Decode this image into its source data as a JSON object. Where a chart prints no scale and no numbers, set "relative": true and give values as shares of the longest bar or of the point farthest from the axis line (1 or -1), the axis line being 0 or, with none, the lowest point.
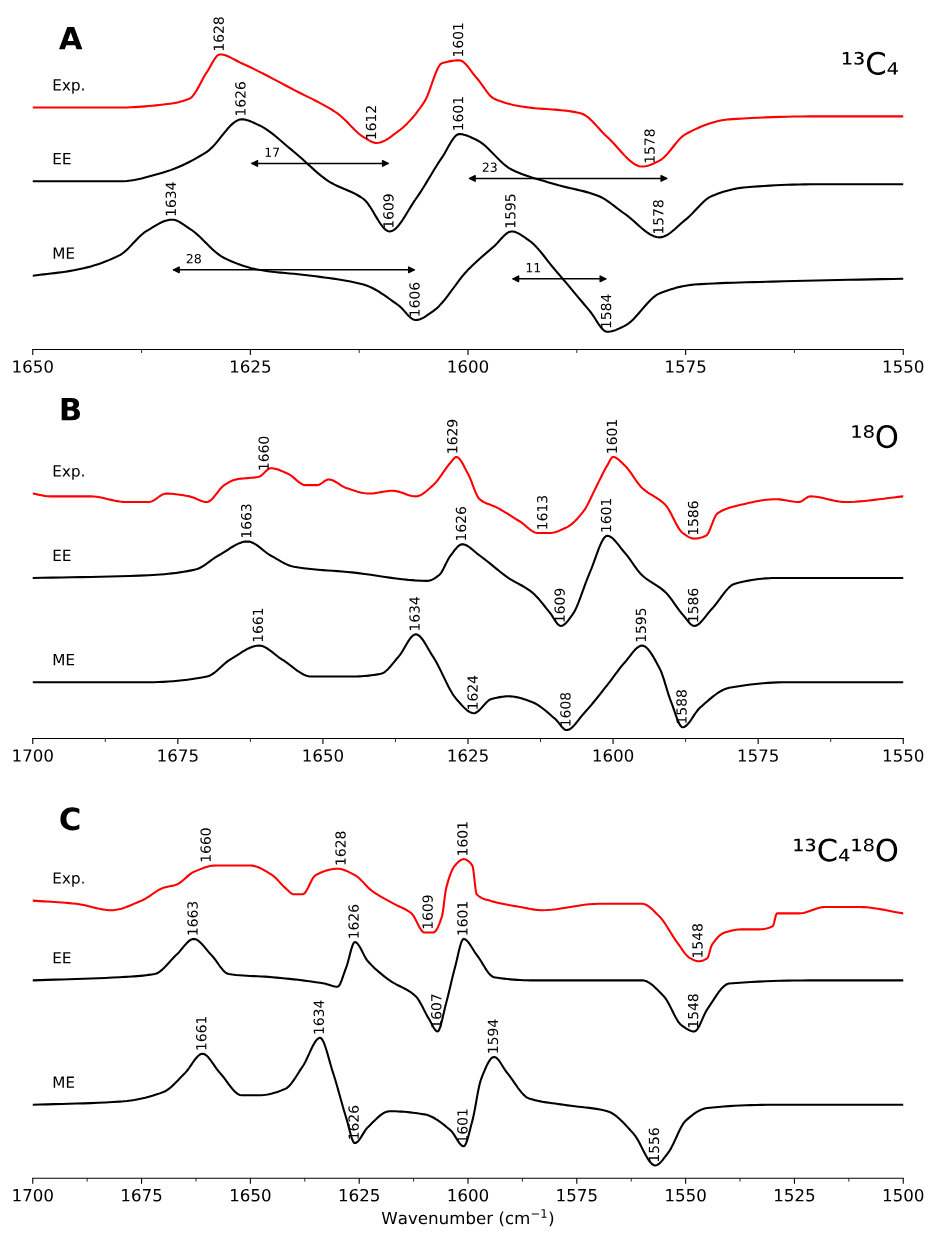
{
  "chart_data": [
    {
      "type": "line",
      "title": "A",
      "relative": true,
      "tick_labels": "x",
      "grid": false,
      "xlim": [
        1650,
        1550
      ],
      "xticks": [
        1650,
        1625,
        1600,
        1575,
        1550
      ],
      "series": [
        {
          "name": "Exp.",
          "color": "#ff0000",
          "x": [
            1650,
            1640,
            1635,
            1632,
            1630,
            1628.5,
            1626,
            1620,
            1615,
            1612,
            1610.5,
            1608,
            1605,
            1603,
            1601,
            1599,
            1597,
            1593,
            1589,
            1587,
            1584,
            1580,
            1578,
            1575,
            1570,
            1560,
            1550
          ],
          "values": [
            0.82,
            0.82,
            0.83,
            0.85,
            0.94,
            1.0,
            0.97,
            0.88,
            0.8,
            0.72,
            0.7,
            0.74,
            0.84,
            0.97,
            0.98,
            0.92,
            0.85,
            0.82,
            0.81,
            0.8,
            0.72,
            0.62,
            0.64,
            0.73,
            0.78,
            0.79,
            0.79
          ]
        },
        {
          "name": "EE",
          "color": "#000000",
          "x": [
            1650,
            1640,
            1635,
            1630,
            1626,
            1624,
            1620,
            1616,
            1612,
            1609,
            1606,
            1603,
            1601,
            1599,
            1595,
            1590,
            1585,
            1582,
            1578,
            1575,
            1572,
            1568,
            1560,
            1550
          ],
          "values": [
            0.57,
            0.57,
            0.6,
            0.67,
            0.78,
            0.76,
            0.67,
            0.57,
            0.51,
            0.4,
            0.51,
            0.65,
            0.73,
            0.71,
            0.61,
            0.56,
            0.52,
            0.46,
            0.38,
            0.44,
            0.52,
            0.55,
            0.56,
            0.56
          ]
        },
        {
          "name": "ME",
          "color": "#000000",
          "x": [
            1650,
            1645,
            1640,
            1637,
            1634,
            1632,
            1628,
            1624,
            1618,
            1612,
            1608,
            1606,
            1604,
            1600,
            1597,
            1595,
            1593,
            1590,
            1586,
            1584,
            1582,
            1578,
            1574,
            1565,
            1550
          ],
          "values": [
            0.25,
            0.27,
            0.32,
            0.4,
            0.44,
            0.41,
            0.31,
            0.27,
            0.25,
            0.22,
            0.15,
            0.1,
            0.13,
            0.27,
            0.35,
            0.4,
            0.37,
            0.27,
            0.13,
            0.06,
            0.08,
            0.19,
            0.22,
            0.23,
            0.24
          ]
        }
      ],
      "annotations": [
        "¹³C₄",
        {
          "text": "1628",
          "x": 1628.5,
          "y": 1.0
        },
        {
          "text": "1612",
          "x": 1611,
          "y": 0.7
        },
        {
          "text": "1601",
          "x": 1601,
          "y": 0.98
        },
        {
          "text": "1578",
          "x": 1579,
          "y": 0.62
        },
        {
          "text": "1626",
          "x": 1626,
          "y": 0.78
        },
        {
          "text": "1609",
          "x": 1609,
          "y": 0.4
        },
        {
          "text": "1601",
          "x": 1601,
          "y": 0.73
        },
        {
          "text": "1578",
          "x": 1578,
          "y": 0.38
        },
        {
          "text": "1634",
          "x": 1634,
          "y": 0.44
        },
        {
          "text": "1606",
          "x": 1606,
          "y": 0.1
        },
        {
          "text": "1595",
          "x": 1595,
          "y": 0.4
        },
        {
          "text": "1584",
          "x": 1584,
          "y": 0.06
        },
        "17",
        "23",
        "28",
        "11"
      ]
    },
    {
      "type": "line",
      "title": "B",
      "relative": true,
      "tick_labels": "x",
      "grid": false,
      "xlim": [
        1700,
        1550
      ],
      "xticks": [
        1700,
        1675,
        1650,
        1625,
        1600,
        1575,
        1550
      ],
      "series": [
        {
          "name": "Exp.",
          "color": "#ff0000",
          "x": [
            1700,
            1697,
            1690,
            1684,
            1680,
            1677,
            1673,
            1670,
            1667,
            1665,
            1661,
            1659,
            1656,
            1653,
            1651,
            1649,
            1646,
            1642,
            1638,
            1634,
            1631,
            1628,
            1627,
            1625,
            1623,
            1620,
            1616,
            1613,
            1611,
            1608,
            1605,
            1603,
            1601,
            1600,
            1598,
            1595,
            1591,
            1588,
            1586,
            1584,
            1582,
            1578,
            1572,
            1568,
            1566,
            1560,
            1550
          ],
          "values": [
            0.87,
            0.86,
            0.86,
            0.84,
            0.84,
            0.87,
            0.86,
            0.84,
            0.9,
            0.92,
            0.93,
            0.96,
            0.94,
            0.9,
            0.9,
            0.92,
            0.89,
            0.87,
            0.88,
            0.86,
            0.9,
            0.98,
            1.0,
            0.94,
            0.85,
            0.82,
            0.77,
            0.73,
            0.73,
            0.75,
            0.81,
            0.89,
            0.97,
            1.0,
            0.97,
            0.89,
            0.83,
            0.73,
            0.71,
            0.72,
            0.8,
            0.83,
            0.85,
            0.84,
            0.86,
            0.84,
            0.86
          ]
        },
        {
          "name": "EE",
          "color": "#000000",
          "x": [
            1700,
            1680,
            1672,
            1668,
            1663,
            1659,
            1655,
            1645,
            1632,
            1630,
            1628,
            1626,
            1623,
            1618,
            1614,
            1611,
            1609,
            1607,
            1604,
            1601,
            1598,
            1595,
            1591,
            1588,
            1586,
            1583,
            1579,
            1572,
            1550
          ],
          "values": [
            0.57,
            0.58,
            0.6,
            0.65,
            0.7,
            0.65,
            0.61,
            0.59,
            0.56,
            0.58,
            0.65,
            0.69,
            0.65,
            0.57,
            0.52,
            0.45,
            0.4,
            0.44,
            0.59,
            0.72,
            0.66,
            0.58,
            0.52,
            0.44,
            0.4,
            0.46,
            0.55,
            0.57,
            0.57
          ]
        },
        {
          "name": "ME",
          "color": "#000000",
          "x": [
            1700,
            1680,
            1670,
            1666,
            1661,
            1657,
            1652,
            1645,
            1640,
            1637,
            1634,
            1631,
            1627,
            1624,
            1621,
            1618,
            1614,
            1610,
            1608,
            1605,
            1601,
            1598,
            1595,
            1592,
            1590,
            1588,
            1585,
            1580,
            1570,
            1550
          ],
          "values": [
            0.2,
            0.2,
            0.22,
            0.28,
            0.33,
            0.28,
            0.22,
            0.22,
            0.23,
            0.29,
            0.37,
            0.29,
            0.14,
            0.09,
            0.14,
            0.15,
            0.13,
            0.07,
            0.03,
            0.09,
            0.19,
            0.27,
            0.33,
            0.25,
            0.13,
            0.04,
            0.11,
            0.18,
            0.2,
            0.2
          ]
        }
      ],
      "annotations": [
        "¹⁸O",
        {
          "text": "1660",
          "x": 1660,
          "y": 0.94
        },
        {
          "text": "1629",
          "x": 1627.5,
          "y": 1.0
        },
        {
          "text": "1613",
          "x": 1612,
          "y": 0.73
        },
        {
          "text": "1601",
          "x": 1600,
          "y": 1.0
        },
        {
          "text": "1586",
          "x": 1586,
          "y": 0.71
        },
        {
          "text": "1663",
          "x": 1663,
          "y": 0.7
        },
        {
          "text": "1626",
          "x": 1626,
          "y": 0.69
        },
        {
          "text": "1609",
          "x": 1609,
          "y": 0.4
        },
        {
          "text": "1601",
          "x": 1601,
          "y": 0.72
        },
        {
          "text": "1586",
          "x": 1586,
          "y": 0.4
        },
        {
          "text": "1661",
          "x": 1661,
          "y": 0.33
        },
        {
          "text": "1634",
          "x": 1634,
          "y": 0.37
        },
        {
          "text": "1624",
          "x": 1624,
          "y": 0.09
        },
        {
          "text": "1608",
          "x": 1608,
          "y": 0.03
        },
        {
          "text": "1595",
          "x": 1595,
          "y": 0.33
        },
        {
          "text": "1588",
          "x": 1588,
          "y": 0.04
        }
      ]
    },
    {
      "type": "line",
      "title": "C",
      "relative": true,
      "tick_labels": "x",
      "grid": false,
      "xlabel": "Wavenumber (cm$^{−1}$)",
      "xlim": [
        1700,
        1500
      ],
      "xticks": [
        1700,
        1675,
        1650,
        1625,
        1600,
        1575,
        1550,
        1525,
        1500
      ],
      "series": [
        {
          "name": "Exp.",
          "color": "#ff0000",
          "x": [
            1700,
            1690,
            1682,
            1675,
            1670,
            1667,
            1663,
            1658,
            1650,
            1645,
            1642,
            1640,
            1638,
            1635,
            1630,
            1626,
            1622,
            1617,
            1613,
            1610,
            1608,
            1606,
            1605,
            1603,
            1601,
            1599,
            1598,
            1595,
            1588,
            1583,
            1570,
            1560,
            1556,
            1552,
            1549,
            1547,
            1545,
            1544,
            1541,
            1537,
            1533,
            1530,
            1529,
            1524,
            1518,
            1510,
            1500
          ],
          "values": [
            0.87,
            0.86,
            0.84,
            0.87,
            0.91,
            0.92,
            0.96,
            0.98,
            0.98,
            0.95,
            0.91,
            0.89,
            0.89,
            0.95,
            0.97,
            0.95,
            0.9,
            0.86,
            0.83,
            0.77,
            0.77,
            0.82,
            0.91,
            0.98,
            1.0,
            0.98,
            0.89,
            0.87,
            0.85,
            0.84,
            0.86,
            0.86,
            0.82,
            0.74,
            0.69,
            0.68,
            0.69,
            0.73,
            0.77,
            0.78,
            0.78,
            0.79,
            0.83,
            0.83,
            0.85,
            0.85,
            0.83
          ]
        },
        {
          "name": "EE",
          "color": "#000000",
          "x": [
            1700,
            1680,
            1672,
            1667,
            1663,
            1659,
            1655,
            1645,
            1633,
            1630,
            1628,
            1626,
            1623,
            1618,
            1612,
            1609,
            1607,
            1605,
            1603,
            1601,
            1598,
            1594,
            1585,
            1560,
            1555,
            1551,
            1548,
            1545,
            1540,
            1520,
            1500
          ],
          "values": [
            0.62,
            0.63,
            0.64,
            0.7,
            0.75,
            0.7,
            0.64,
            0.63,
            0.61,
            0.6,
            0.66,
            0.74,
            0.68,
            0.62,
            0.57,
            0.5,
            0.46,
            0.55,
            0.66,
            0.75,
            0.7,
            0.63,
            0.62,
            0.62,
            0.57,
            0.48,
            0.46,
            0.53,
            0.61,
            0.62,
            0.62
          ]
        },
        {
          "name": "ME",
          "color": "#000000",
          "x": [
            1700,
            1680,
            1670,
            1665,
            1661,
            1657,
            1652,
            1648,
            1642,
            1638,
            1634,
            1631,
            1628,
            1626,
            1623,
            1618,
            1610,
            1604,
            1601,
            1599,
            1597,
            1594,
            1591,
            1586,
            1578,
            1568,
            1562,
            1557,
            1554,
            1550,
            1545,
            1530,
            1500
          ],
          "values": [
            0.23,
            0.24,
            0.27,
            0.33,
            0.39,
            0.33,
            0.26,
            0.26,
            0.28,
            0.35,
            0.44,
            0.33,
            0.19,
            0.11,
            0.16,
            0.21,
            0.2,
            0.15,
            0.1,
            0.18,
            0.31,
            0.38,
            0.33,
            0.25,
            0.23,
            0.21,
            0.14,
            0.04,
            0.08,
            0.18,
            0.22,
            0.23,
            0.23
          ]
        }
      ],
      "annotations": [
        "¹³C₄¹⁸O",
        {
          "text": "1660",
          "x": 1660,
          "y": 0.98
        },
        {
          "text": "1628",
          "x": 1629,
          "y": 0.97
        },
        {
          "text": "1609",
          "x": 1609,
          "y": 0.77
        },
        {
          "text": "1601",
          "x": 1601,
          "y": 1.0
        },
        {
          "text": "1548",
          "x": 1547,
          "y": 0.68
        },
        {
          "text": "1663",
          "x": 1663,
          "y": 0.75
        },
        {
          "text": "1626",
          "x": 1626,
          "y": 0.74
        },
        {
          "text": "1607",
          "x": 1607,
          "y": 0.46
        },
        {
          "text": "1601",
          "x": 1601,
          "y": 0.75
        },
        {
          "text": "1548",
          "x": 1548,
          "y": 0.46
        },
        {
          "text": "1661",
          "x": 1661,
          "y": 0.39
        },
        {
          "text": "1634",
          "x": 1634,
          "y": 0.44
        },
        {
          "text": "1626",
          "x": 1626,
          "y": 0.11
        },
        {
          "text": "1601",
          "x": 1601,
          "y": 0.1
        },
        {
          "text": "1594",
          "x": 1594,
          "y": 0.38
        },
        {
          "text": "1556",
          "x": 1557,
          "y": 0.04
        }
      ]
    }
  ]
}
